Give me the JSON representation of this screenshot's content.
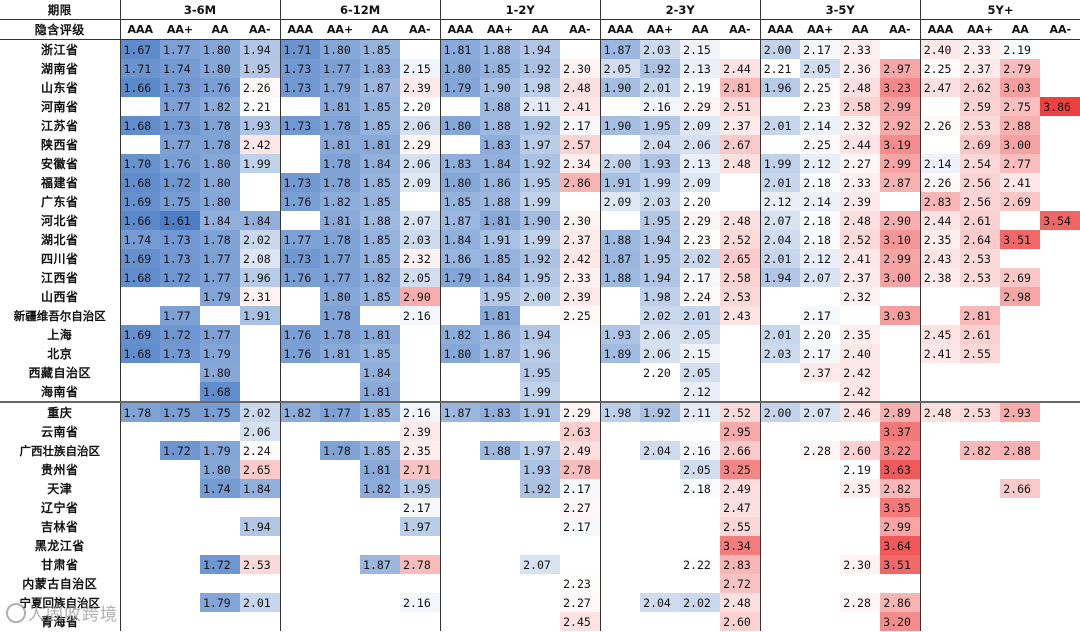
{
  "chart_data": {
    "type": "heatmap",
    "title": "",
    "row_header_label": "期限",
    "rating_header_label": "隐含评级",
    "period_groups": [
      "3-6M",
      "6-12M",
      "1-2Y",
      "2-3Y",
      "3-5Y",
      "5Y+"
    ],
    "ratings": [
      "AAA",
      "AA+",
      "AA",
      "AA-"
    ],
    "color_scale": {
      "low_color": "#4a7cc4",
      "mid_color": "#ffffff",
      "high_color": "#ee3b3b",
      "mid_value": 2.2,
      "min_value": 1.6,
      "max_value": 3.9
    },
    "group_separator_after_row": 19,
    "rows": [
      {
        "name": "浙江省",
        "values": [
          1.67,
          1.77,
          1.8,
          1.94,
          1.71,
          1.8,
          1.85,
          null,
          1.81,
          1.88,
          1.94,
          null,
          1.87,
          2.03,
          2.15,
          null,
          2.0,
          2.17,
          2.33,
          null,
          2.4,
          2.33,
          2.19,
          null
        ]
      },
      {
        "name": "湖南省",
        "values": [
          1.71,
          1.74,
          1.8,
          1.95,
          1.73,
          1.77,
          1.83,
          2.15,
          1.8,
          1.85,
          1.92,
          2.3,
          2.05,
          1.92,
          2.13,
          2.44,
          2.21,
          2.05,
          2.36,
          2.97,
          2.25,
          2.37,
          2.79,
          null
        ]
      },
      {
        "name": "山东省",
        "values": [
          1.66,
          1.73,
          1.76,
          2.26,
          1.73,
          1.79,
          1.87,
          2.39,
          1.79,
          1.9,
          1.98,
          2.48,
          1.9,
          2.01,
          2.19,
          2.81,
          1.96,
          2.25,
          2.48,
          3.23,
          2.47,
          2.62,
          3.03,
          null
        ]
      },
      {
        "name": "河南省",
        "values": [
          null,
          1.77,
          1.82,
          2.21,
          null,
          1.81,
          1.85,
          2.2,
          null,
          1.88,
          2.11,
          2.41,
          null,
          2.16,
          2.29,
          2.51,
          null,
          2.23,
          2.58,
          2.99,
          null,
          2.59,
          2.75,
          3.86
        ]
      },
      {
        "name": "江苏省",
        "values": [
          1.68,
          1.73,
          1.78,
          1.93,
          1.73,
          1.78,
          1.85,
          2.06,
          1.8,
          1.88,
          1.92,
          2.17,
          1.9,
          1.95,
          2.09,
          2.37,
          2.01,
          2.14,
          2.32,
          2.92,
          2.26,
          2.53,
          2.88,
          null
        ]
      },
      {
        "name": "陕西省",
        "values": [
          null,
          1.77,
          1.78,
          2.42,
          null,
          1.81,
          1.81,
          2.29,
          null,
          1.83,
          1.97,
          2.57,
          null,
          2.04,
          2.06,
          2.67,
          null,
          2.25,
          2.44,
          3.19,
          null,
          2.69,
          3.0,
          null
        ]
      },
      {
        "name": "安徽省",
        "values": [
          1.7,
          1.76,
          1.8,
          1.99,
          null,
          1.78,
          1.84,
          2.06,
          1.83,
          1.84,
          1.92,
          2.34,
          2.0,
          1.93,
          2.13,
          2.48,
          1.99,
          2.12,
          2.27,
          2.99,
          2.14,
          2.54,
          2.77,
          null
        ]
      },
      {
        "name": "福建省",
        "values": [
          1.68,
          1.72,
          1.8,
          null,
          1.73,
          1.78,
          1.85,
          2.09,
          1.8,
          1.86,
          1.95,
          2.86,
          1.91,
          1.99,
          2.09,
          null,
          2.01,
          2.18,
          2.33,
          2.87,
          2.26,
          2.56,
          2.41,
          null
        ]
      },
      {
        "name": "广东省",
        "values": [
          1.69,
          1.75,
          1.8,
          null,
          1.76,
          1.82,
          1.85,
          null,
          1.85,
          1.88,
          1.99,
          null,
          2.09,
          2.03,
          2.2,
          null,
          2.12,
          2.14,
          2.39,
          null,
          2.83,
          2.56,
          2.69,
          null
        ]
      },
      {
        "name": "河北省",
        "values": [
          1.66,
          1.61,
          1.84,
          1.84,
          null,
          1.81,
          1.88,
          2.07,
          1.87,
          1.81,
          1.9,
          2.3,
          null,
          1.95,
          2.29,
          2.48,
          2.07,
          2.18,
          2.48,
          2.9,
          2.44,
          2.61,
          null,
          3.54
        ]
      },
      {
        "name": "湖北省",
        "values": [
          1.74,
          1.73,
          1.78,
          2.02,
          1.77,
          1.78,
          1.85,
          2.03,
          1.84,
          1.91,
          1.99,
          2.37,
          1.88,
          1.94,
          2.23,
          2.52,
          2.04,
          2.18,
          2.52,
          3.1,
          2.35,
          2.64,
          3.51,
          null
        ]
      },
      {
        "name": "四川省",
        "values": [
          1.69,
          1.73,
          1.77,
          2.08,
          1.73,
          1.77,
          1.85,
          2.32,
          1.86,
          1.85,
          1.92,
          2.42,
          1.87,
          1.95,
          2.02,
          2.65,
          2.01,
          2.12,
          2.41,
          2.99,
          2.43,
          2.53,
          null,
          null
        ]
      },
      {
        "name": "江西省",
        "values": [
          1.68,
          1.72,
          1.77,
          1.96,
          1.76,
          1.77,
          1.82,
          2.05,
          1.79,
          1.84,
          1.95,
          2.33,
          1.88,
          1.94,
          2.17,
          2.58,
          1.94,
          2.07,
          2.37,
          3.0,
          2.38,
          2.53,
          2.69,
          null
        ]
      },
      {
        "name": "山西省",
        "values": [
          null,
          null,
          1.79,
          2.31,
          null,
          1.8,
          1.85,
          2.9,
          null,
          1.95,
          2.0,
          2.39,
          null,
          1.98,
          2.24,
          2.53,
          null,
          null,
          2.32,
          null,
          null,
          null,
          2.98,
          null
        ]
      },
      {
        "name": "新疆维吾尔自治区",
        "values": [
          null,
          1.77,
          null,
          1.91,
          null,
          1.78,
          null,
          2.16,
          null,
          1.81,
          null,
          2.25,
          null,
          2.02,
          2.01,
          2.43,
          null,
          2.17,
          null,
          3.03,
          null,
          2.81,
          null,
          null
        ]
      },
      {
        "name": "上海",
        "values": [
          1.69,
          1.72,
          1.77,
          null,
          1.76,
          1.78,
          1.81,
          null,
          1.82,
          1.86,
          1.94,
          null,
          1.93,
          2.06,
          2.05,
          null,
          2.01,
          2.2,
          2.35,
          null,
          2.45,
          2.61,
          null,
          null
        ]
      },
      {
        "name": "北京",
        "values": [
          1.68,
          1.73,
          1.79,
          null,
          1.76,
          1.81,
          1.85,
          null,
          1.8,
          1.87,
          1.96,
          null,
          1.89,
          2.06,
          2.15,
          null,
          2.03,
          2.17,
          2.4,
          null,
          2.41,
          2.55,
          null,
          null
        ]
      },
      {
        "name": "西藏自治区",
        "values": [
          null,
          null,
          1.8,
          null,
          null,
          null,
          1.84,
          null,
          null,
          null,
          1.95,
          null,
          null,
          2.2,
          2.05,
          null,
          null,
          2.37,
          2.42,
          null,
          null,
          null,
          null,
          null
        ]
      },
      {
        "name": "海南省",
        "values": [
          null,
          null,
          1.68,
          null,
          null,
          null,
          1.81,
          null,
          null,
          null,
          1.99,
          null,
          null,
          null,
          2.12,
          null,
          null,
          null,
          2.42,
          null,
          null,
          null,
          null,
          null
        ]
      },
      {
        "name": "重庆",
        "values": [
          1.78,
          1.75,
          1.75,
          2.02,
          1.82,
          1.77,
          1.85,
          2.16,
          1.87,
          1.83,
          1.91,
          2.29,
          1.98,
          1.92,
          2.11,
          2.52,
          2.0,
          2.07,
          2.46,
          2.89,
          2.48,
          2.53,
          2.93,
          null
        ]
      },
      {
        "name": "云南省",
        "values": [
          null,
          null,
          null,
          2.06,
          null,
          null,
          null,
          2.39,
          null,
          null,
          null,
          2.63,
          null,
          null,
          null,
          2.95,
          null,
          null,
          null,
          3.37,
          null,
          null,
          null,
          null
        ]
      },
      {
        "name": "广西壮族自治区",
        "values": [
          null,
          1.72,
          1.79,
          2.24,
          null,
          1.78,
          1.85,
          2.35,
          null,
          1.88,
          1.97,
          2.49,
          null,
          2.04,
          2.16,
          2.66,
          null,
          2.28,
          2.6,
          3.22,
          null,
          2.82,
          2.88,
          null
        ]
      },
      {
        "name": "贵州省",
        "values": [
          null,
          null,
          1.8,
          2.65,
          null,
          null,
          1.81,
          2.71,
          null,
          null,
          1.93,
          2.78,
          null,
          null,
          2.05,
          3.25,
          null,
          null,
          2.19,
          3.63,
          null,
          null,
          null,
          null
        ]
      },
      {
        "name": "天津",
        "values": [
          null,
          null,
          1.74,
          1.84,
          null,
          null,
          1.82,
          1.95,
          null,
          null,
          1.92,
          2.17,
          null,
          null,
          2.18,
          2.49,
          null,
          null,
          2.35,
          2.82,
          null,
          null,
          2.66,
          null
        ]
      },
      {
        "name": "辽宁省",
        "values": [
          null,
          null,
          null,
          null,
          null,
          null,
          null,
          2.17,
          null,
          null,
          null,
          2.27,
          null,
          null,
          null,
          2.47,
          null,
          null,
          null,
          3.35,
          null,
          null,
          null,
          null
        ]
      },
      {
        "name": "吉林省",
        "values": [
          null,
          null,
          null,
          1.94,
          null,
          null,
          null,
          1.97,
          null,
          null,
          null,
          2.17,
          null,
          null,
          null,
          2.55,
          null,
          null,
          null,
          2.99,
          null,
          null,
          null,
          null
        ]
      },
      {
        "name": "黑龙江省",
        "values": [
          null,
          null,
          null,
          null,
          null,
          null,
          null,
          null,
          null,
          null,
          null,
          null,
          null,
          null,
          null,
          3.34,
          null,
          null,
          null,
          3.64,
          null,
          null,
          null,
          null
        ]
      },
      {
        "name": "甘肃省",
        "values": [
          null,
          null,
          1.72,
          2.53,
          null,
          null,
          1.87,
          2.78,
          null,
          null,
          2.07,
          null,
          null,
          null,
          2.22,
          2.83,
          null,
          null,
          2.3,
          3.51,
          null,
          null,
          null,
          null
        ]
      },
      {
        "name": "内蒙古自治区",
        "values": [
          null,
          null,
          null,
          null,
          null,
          null,
          null,
          null,
          null,
          null,
          null,
          2.23,
          null,
          null,
          null,
          2.72,
          null,
          null,
          null,
          null,
          null,
          null,
          null,
          null
        ]
      },
      {
        "name": "宁夏回族自治区",
        "values": [
          null,
          null,
          1.79,
          2.01,
          null,
          null,
          null,
          2.16,
          null,
          null,
          null,
          2.27,
          null,
          2.04,
          2.02,
          2.48,
          null,
          null,
          2.28,
          2.86,
          null,
          null,
          null,
          null
        ]
      },
      {
        "name": "青海省",
        "values": [
          null,
          null,
          null,
          null,
          null,
          null,
          null,
          null,
          null,
          null,
          null,
          2.45,
          null,
          null,
          null,
          2.6,
          null,
          null,
          null,
          3.2,
          null,
          null,
          null,
          null
        ]
      }
    ]
  }
}
